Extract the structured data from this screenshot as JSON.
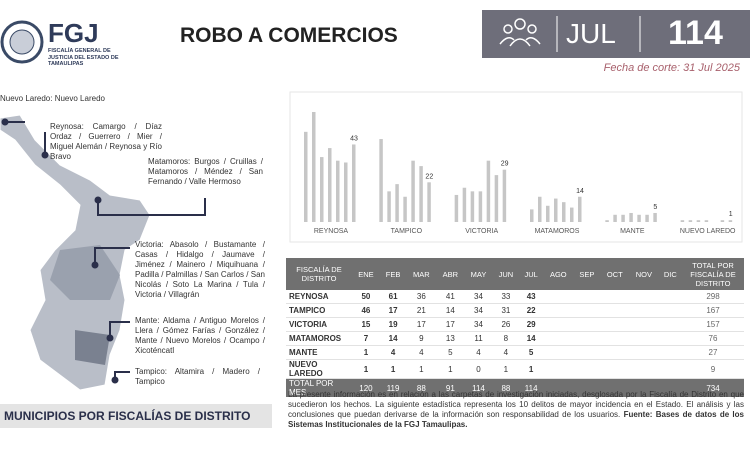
{
  "header": {
    "logo": "FGJ",
    "logo_subtitle": "FISCALÍA GENERAL DE JUSTICIA DEL ESTADO DE TAMAULIPAS",
    "title": "ROBO A COMERCIOS",
    "month": "JUL",
    "total": 114,
    "cutoff": "Fecha de corte: 31 Jul 2025"
  },
  "map": {
    "regions": [
      "Nuevo Laredo: Nuevo Laredo",
      "Reynosa: Camargo / Díaz Ordaz / Guerrero / Mier / Miguel Alemán / Reynosa y Río Bravo",
      "Matamoros: Burgos / Cruillas / Matamoros / Méndez / San Fernando / Valle Hermoso",
      "Victoria: Abasolo / Bustamante / Casas / Hidalgo / Jaumave / Jiménez / Mainero / Miquihuana / Padilla / Palmillas / San Carlos / San Nicolás / Soto La Marina / Tula / Victoria / Villagrán",
      "Mante: Aldama / Antiguo Morelos / Llera / Gómez Farías / González / Mante / Nuevo Morelos / Ocampo / Xicoténcatl",
      "Tampico: Altamira / Madero / Tampico"
    ],
    "caption": "MUNICIPIOS POR FISCALÍAS DE DISTRITO"
  },
  "chart_data": {
    "type": "bar",
    "color": "#c6c6c6",
    "categories": [
      "REYNOSA",
      "TAMPICO",
      "VICTORIA",
      "MATAMOROS",
      "MANTE",
      "NUEVO LAREDO"
    ],
    "series": [
      {
        "name": "ENE",
        "values": [
          50,
          46,
          15,
          7,
          1,
          1
        ]
      },
      {
        "name": "FEB",
        "values": [
          61,
          17,
          19,
          14,
          4,
          1
        ]
      },
      {
        "name": "MAR",
        "values": [
          36,
          21,
          17,
          9,
          4,
          1
        ]
      },
      {
        "name": "ABR",
        "values": [
          41,
          14,
          17,
          13,
          5,
          1
        ]
      },
      {
        "name": "MAY",
        "values": [
          34,
          34,
          34,
          11,
          4,
          0
        ]
      },
      {
        "name": "JUN",
        "values": [
          33,
          31,
          26,
          8,
          4,
          1
        ]
      },
      {
        "name": "JUL",
        "values": [
          43,
          22,
          29,
          14,
          5,
          1
        ]
      },
      {
        "name": "AGO",
        "values": [
          null,
          null,
          null,
          null,
          null,
          null
        ]
      },
      {
        "name": "SEP",
        "values": [
          null,
          null,
          null,
          null,
          null,
          null
        ]
      },
      {
        "name": "OCT",
        "values": [
          null,
          null,
          null,
          null,
          null,
          null
        ]
      },
      {
        "name": "NOV",
        "values": [
          null,
          null,
          null,
          null,
          null,
          null
        ]
      },
      {
        "name": "DIC",
        "values": [
          null,
          null,
          null,
          null,
          null,
          null
        ]
      }
    ],
    "labeled_series": 6,
    "ylim": [
      0,
      61
    ]
  },
  "table": {
    "district_header": "FISCALÍA DE DISTRITO",
    "total_header": "TOTAL POR FISCALÍA DE DISTRITO",
    "district_totals": [
      298,
      167,
      157,
      76,
      27,
      9
    ],
    "total_row_label": "TOTAL POR MES",
    "monthly_totals": [
      120,
      119,
      88,
      91,
      114,
      88,
      114,
      null,
      null,
      null,
      null,
      null
    ],
    "grand_total": 734
  },
  "footer": {
    "text": "La presente información es en relación a las carpetas de investigación iniciadas, desglosada por la Fiscalía de Distrito en que sucedieron los hechos. La siguiente estadística representa los 10 delitos de mayor incidencia en el Estado. El análisis y las conclusiones que puedan derivarse de la información son responsabilidad de los usuarios.",
    "source": "Fuente: Bases de datos de los Sistemas Institucionales de la FGJ Tamaulipas."
  }
}
